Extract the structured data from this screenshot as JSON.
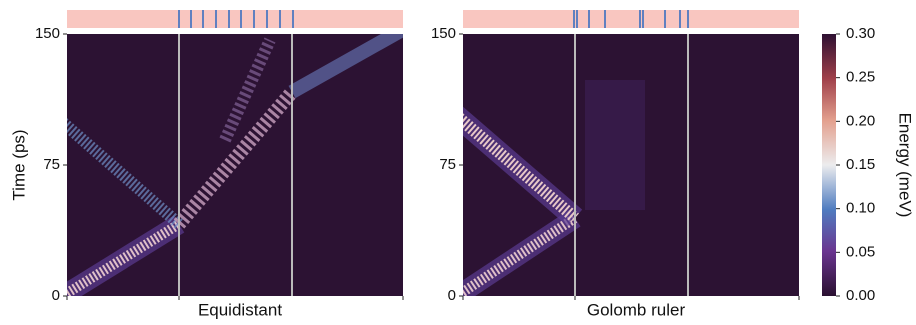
{
  "chart_data": [
    {
      "type": "heatmap",
      "xlabel": "Equidistant",
      "ylabel": "Time (ps)",
      "ylim": [
        0,
        150
      ],
      "yticks": [
        0,
        75,
        150
      ]
    },
    {
      "type": "heatmap",
      "xlabel": "Golomb ruler",
      "ylim": [
        0,
        150
      ],
      "yticks": [
        0,
        75,
        150
      ]
    },
    {
      "type": "colorbar",
      "label": "Energy (meV)",
      "lim": [
        0,
        0.3
      ],
      "ticks": [
        {
          "value": 0,
          "label": "0.00"
        },
        {
          "value": 0.05,
          "label": "0.05"
        },
        {
          "value": 0.1,
          "label": "0.10"
        },
        {
          "value": 0.15,
          "label": "0.15"
        },
        {
          "value": 0.2,
          "label": "0.20"
        },
        {
          "value": 0.25,
          "label": "0.25"
        },
        {
          "value": 0.3,
          "label": "0.30"
        }
      ]
    }
  ]
}
